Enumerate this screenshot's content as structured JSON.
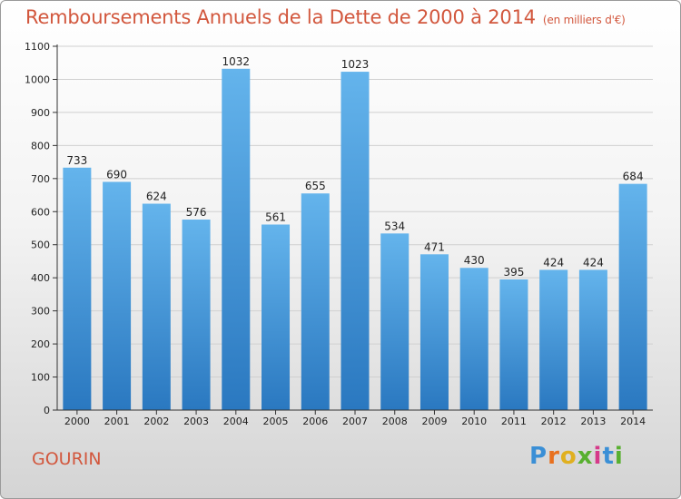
{
  "chart_data": {
    "type": "bar",
    "title": "Remboursements Annuels de la Dette de 2000 à 2014",
    "subtitle": "(en milliers d'€)",
    "categories": [
      "2000",
      "2001",
      "2002",
      "2003",
      "2004",
      "2005",
      "2006",
      "2007",
      "2008",
      "2009",
      "2010",
      "2011",
      "2012",
      "2013",
      "2014"
    ],
    "values": [
      733,
      690,
      624,
      576,
      1032,
      561,
      655,
      1023,
      534,
      471,
      430,
      395,
      424,
      424,
      684
    ],
    "ylim": [
      0,
      1100
    ],
    "yticks": [
      0,
      100,
      200,
      300,
      400,
      500,
      600,
      700,
      800,
      900,
      1000,
      1100
    ],
    "grid": true,
    "xlabel": "",
    "ylabel": ""
  },
  "footer": {
    "commune": "GOURIN",
    "logo_text": "Proxiti"
  },
  "colors": {
    "title": "#d2573d",
    "bar_top": "#64b4ec",
    "bar_bottom": "#2a78c0",
    "grid": "#d0d0d0"
  }
}
